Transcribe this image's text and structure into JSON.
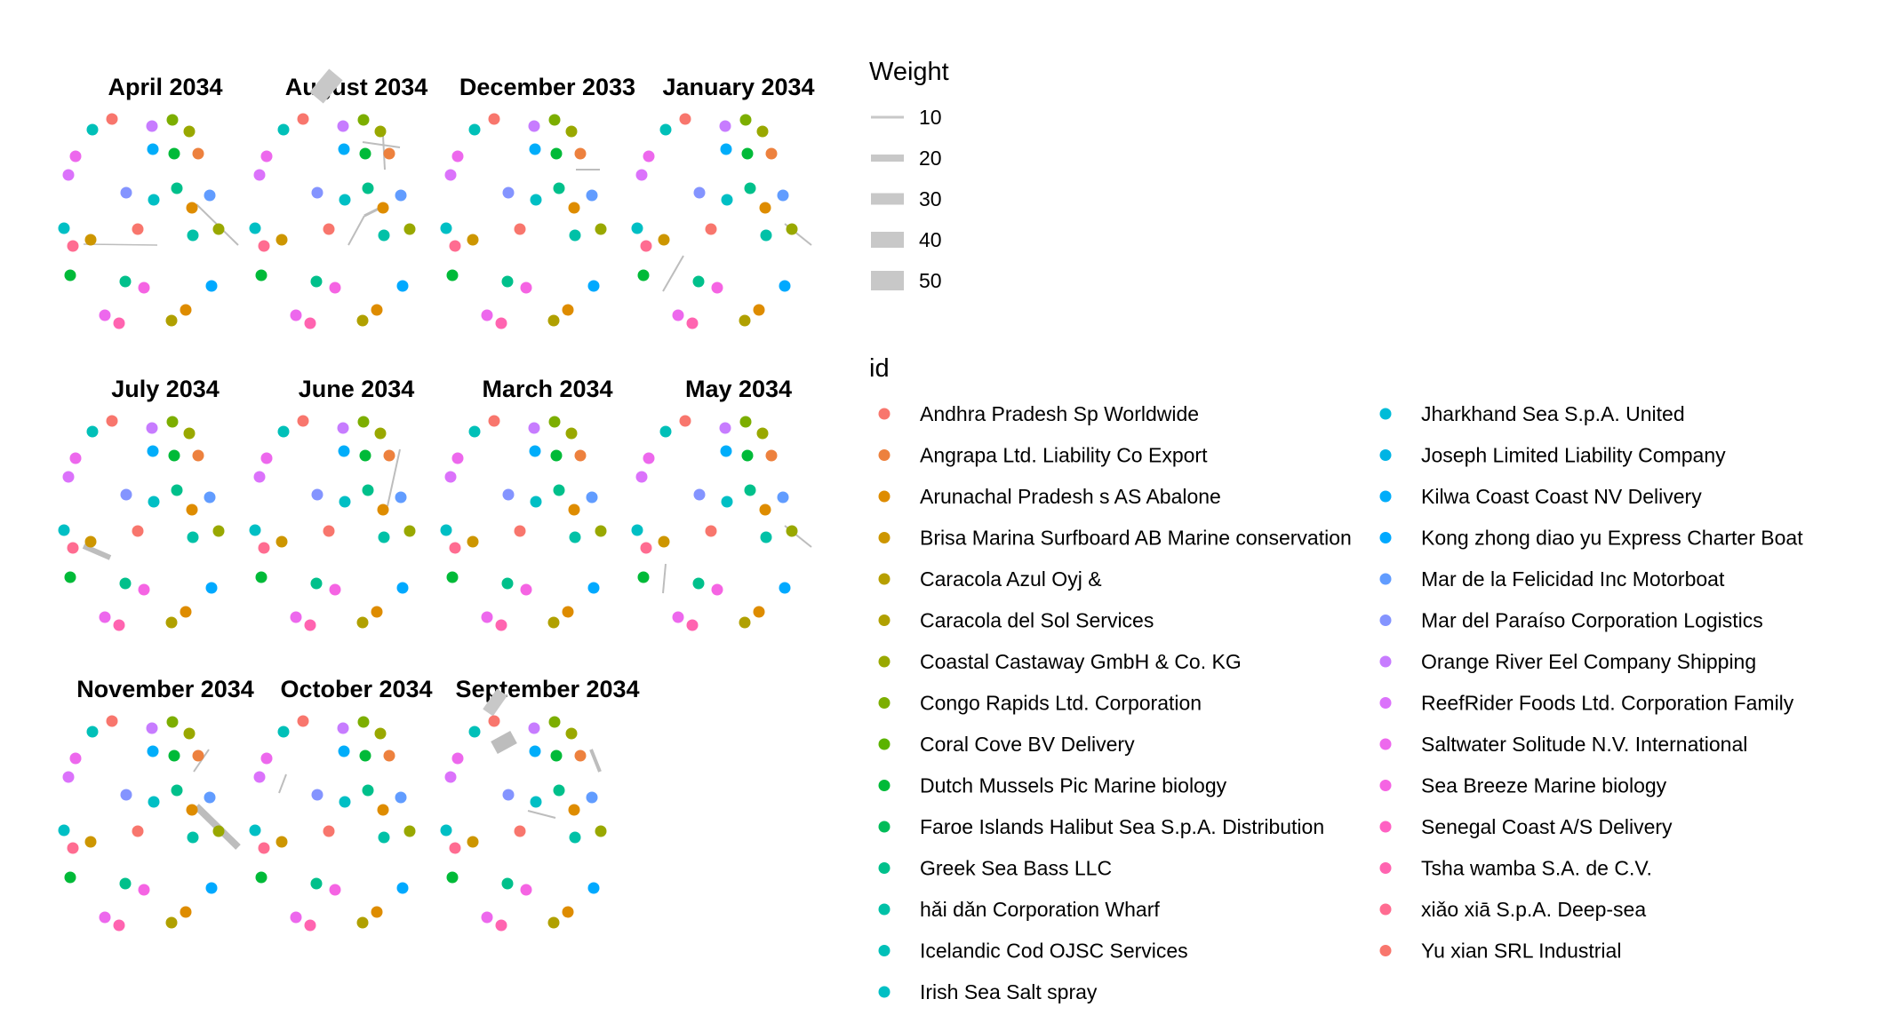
{
  "chart_data": {
    "type": "network-facets",
    "panels": [
      {
        "title": "April 2034",
        "edges": [
          [
            "n1",
            "n2",
            3
          ],
          [
            "n0",
            "n3",
            3
          ]
        ]
      },
      {
        "title": "August 2034",
        "edges": [
          [
            "n0",
            "n3",
            2
          ],
          [
            "n4",
            "n5",
            4
          ],
          [
            "n6",
            "n7",
            5
          ],
          [
            "n8",
            "n11",
            45
          ]
        ]
      },
      {
        "title": "December 2033",
        "edges": [
          [
            "n4",
            "n5",
            4
          ]
        ]
      },
      {
        "title": "January 2034",
        "edges": [
          [
            "n9",
            "n10",
            3
          ],
          [
            "n1",
            "n2",
            3
          ],
          [
            "n12",
            "n13",
            3
          ]
        ]
      },
      {
        "title": "July 2034",
        "edges": [
          [
            "n9",
            "n10",
            10
          ]
        ]
      },
      {
        "title": "June 2034",
        "edges": [
          [
            "n3",
            "n5",
            3
          ]
        ]
      },
      {
        "title": "March 2034",
        "edges": []
      },
      {
        "title": "May 2034",
        "edges": [
          [
            "n1",
            "n2",
            3
          ],
          [
            "n12",
            "n13",
            3
          ],
          [
            "n15",
            "n16",
            3
          ]
        ]
      },
      {
        "title": "November 2034",
        "edges": [
          [
            "n1",
            "n14",
            12
          ],
          [
            "n0",
            "n3",
            3
          ],
          [
            "n5",
            "n17",
            3
          ]
        ]
      },
      {
        "title": "October 2034",
        "edges": [
          [
            "n18",
            "n19",
            4
          ]
        ]
      },
      {
        "title": "September 2034",
        "edges": [
          [
            "n7",
            "n5",
            8
          ],
          [
            "n8",
            "n11",
            40
          ],
          [
            "n20",
            "n21",
            3
          ]
        ]
      }
    ],
    "legend_weight": {
      "title": "Weight",
      "values": [
        "10",
        "20",
        "30",
        "40",
        "50"
      ]
    },
    "legend_id": {
      "title": "id",
      "entries": [
        {
          "label": "Andhra Pradesh  Sp Worldwide",
          "color": "#F8766D"
        },
        {
          "label": "Angrapa Ltd. Liability Co Export",
          "color": "#ED813E"
        },
        {
          "label": "Arunachal Pradesh s AS Abalone",
          "color": "#DE8C00"
        },
        {
          "label": "Brisa Marina Surfboard AB Marine conservation",
          "color": "#CD9600"
        },
        {
          "label": "Caracola Azul Oyj &",
          "color": "#B79F00"
        },
        {
          "label": "Caracola del Sol Services",
          "color": "#B0A000"
        },
        {
          "label": "Coastal Castaway GmbH & Co. KG",
          "color": "#99A800"
        },
        {
          "label": "Congo Rapids   Ltd. Corporation",
          "color": "#7CAE00"
        },
        {
          "label": "Coral Cove BV Delivery",
          "color": "#5BB300"
        },
        {
          "label": "Dutch Mussels Pic Marine biology",
          "color": "#00BA38"
        },
        {
          "label": "Faroe Islands Halibut Sea S.p.A. Distribution",
          "color": "#00BC59"
        },
        {
          "label": "Greek Sea Bass LLC",
          "color": "#00C08B"
        },
        {
          "label": "hǎi dǎn Corporation Wharf",
          "color": "#00C1A7"
        },
        {
          "label": "Icelandic Cod OJSC Services",
          "color": "#00C0B8"
        },
        {
          "label": "Irish Sea  Salt spray",
          "color": "#00BFC4"
        },
        {
          "label": "Jharkhand Sea  S.p.A. United",
          "color": "#00BCD8"
        },
        {
          "label": "Joseph Limited Liability Company",
          "color": "#00B4E4"
        },
        {
          "label": "Kilwa Coast  Coast NV Delivery",
          "color": "#00ADFA"
        },
        {
          "label": "Kong zhong diao yu  Express Charter Boat",
          "color": "#00A9FF"
        },
        {
          "label": "Mar de la Felicidad Inc Motorboat",
          "color": "#619CFF"
        },
        {
          "label": "Mar del Paraíso Corporation Logistics",
          "color": "#8494FF"
        },
        {
          "label": "Orange River   Eel Company Shipping",
          "color": "#C77CFF"
        },
        {
          "label": "ReefRider Foods Ltd. Corporation Family",
          "color": "#DB72FB"
        },
        {
          "label": "Saltwater Solitude N.V. International",
          "color": "#ED68ED"
        },
        {
          "label": "Sea Breeze Marine biology",
          "color": "#F564E3"
        },
        {
          "label": "Senegal Coast  A/S Delivery",
          "color": "#FF61C3"
        },
        {
          "label": "Tsha wamba S.A. de C.V.",
          "color": "#FF64B0"
        },
        {
          "label": "xiǎo xiā S.p.A. Deep-sea",
          "color": "#FF6C91"
        },
        {
          "label": "Yu xian  SRL Industrial",
          "color": "#F8766D"
        }
      ]
    }
  }
}
